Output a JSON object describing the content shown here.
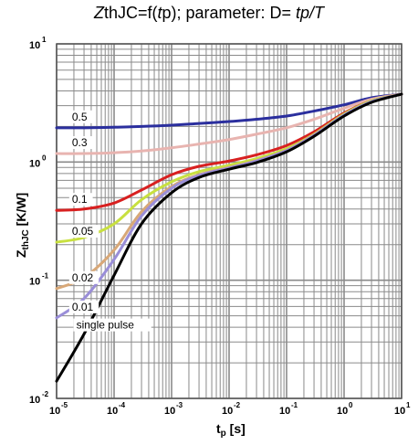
{
  "title": {
    "zth": "Z",
    "thjc": "thJC=f(",
    "tp_italic": "t",
    "tp_rest": "p); parameter: D= ",
    "d_formula": "tp/T"
  },
  "chart_data": {
    "type": "line",
    "title": "ZthJC=f(tp); parameter: D= tp/T",
    "xlabel": "tp [s]",
    "ylabel": "ZthJC [K/W]",
    "x_scale": "log",
    "y_scale": "log",
    "xlim": [
      1e-05,
      10
    ],
    "ylim": [
      0.01,
      10
    ],
    "grid": true,
    "x_ticks": [
      {
        "base": "10",
        "exp": "-5",
        "value": 1e-05
      },
      {
        "base": "10",
        "exp": "-4",
        "value": 0.0001
      },
      {
        "base": "10",
        "exp": "-3",
        "value": 0.001
      },
      {
        "base": "10",
        "exp": "-2",
        "value": 0.01
      },
      {
        "base": "10",
        "exp": "-1",
        "value": 0.1
      },
      {
        "base": "10",
        "exp": "0",
        "value": 1
      },
      {
        "base": "10",
        "exp": "1",
        "value": 10
      }
    ],
    "y_ticks": [
      {
        "base": "10",
        "exp": "-2",
        "value": 0.01
      },
      {
        "base": "10",
        "exp": "-1",
        "value": 0.1
      },
      {
        "base": "10",
        "exp": "0",
        "value": 1
      },
      {
        "base": "10",
        "exp": "1",
        "value": 10
      }
    ],
    "series": [
      {
        "name": "0.5",
        "color": "#2b2f9e",
        "x": [
          1e-05,
          3e-05,
          0.0001,
          0.0003,
          0.001,
          0.003,
          0.01,
          0.03,
          0.1,
          0.3,
          1,
          3,
          10
        ],
        "y": [
          1.95,
          1.95,
          1.97,
          2.0,
          2.05,
          2.12,
          2.2,
          2.3,
          2.45,
          2.7,
          3.05,
          3.5,
          3.75
        ]
      },
      {
        "name": "0.3",
        "color": "#e8b4b0",
        "x": [
          1e-05,
          3e-05,
          0.0001,
          0.0003,
          0.001,
          0.003,
          0.01,
          0.03,
          0.1,
          0.3,
          1,
          3,
          10
        ],
        "y": [
          1.18,
          1.18,
          1.2,
          1.24,
          1.32,
          1.42,
          1.55,
          1.72,
          1.95,
          2.3,
          2.85,
          3.4,
          3.75
        ]
      },
      {
        "name": "0.1",
        "color": "#d82020",
        "x": [
          1e-05,
          3e-05,
          0.0001,
          0.0003,
          0.001,
          0.003,
          0.01,
          0.03,
          0.1,
          0.3,
          1,
          3,
          10
        ],
        "y": [
          0.39,
          0.4,
          0.45,
          0.58,
          0.78,
          0.92,
          1.02,
          1.15,
          1.38,
          1.8,
          2.6,
          3.3,
          3.75
        ]
      },
      {
        "name": "0.05",
        "color": "#c8e040",
        "x": [
          1e-05,
          3e-05,
          0.0001,
          0.0003,
          0.001,
          0.003,
          0.01,
          0.03,
          0.1,
          0.3,
          1,
          3,
          10
        ],
        "y": [
          0.21,
          0.23,
          0.3,
          0.48,
          0.68,
          0.83,
          0.94,
          1.07,
          1.3,
          1.72,
          2.55,
          3.3,
          3.75
        ]
      },
      {
        "name": "0.02",
        "color": "#d8a878",
        "x": [
          1e-05,
          3e-05,
          0.0001,
          0.0003,
          0.001,
          0.003,
          0.01,
          0.03,
          0.1,
          0.3,
          1,
          3,
          10
        ],
        "y": [
          0.085,
          0.105,
          0.18,
          0.38,
          0.62,
          0.78,
          0.9,
          1.03,
          1.26,
          1.7,
          2.5,
          3.25,
          3.75
        ]
      },
      {
        "name": "0.01",
        "color": "#9a8ed8",
        "x": [
          1e-05,
          3e-05,
          0.0001,
          0.0003,
          0.001,
          0.003,
          0.01,
          0.03,
          0.1,
          0.3,
          1,
          3,
          10
        ],
        "y": [
          0.048,
          0.07,
          0.15,
          0.35,
          0.6,
          0.77,
          0.89,
          1.02,
          1.25,
          1.68,
          2.5,
          3.25,
          3.75
        ]
      },
      {
        "name": "single pulse",
        "color": "#000000",
        "x": [
          1e-05,
          3e-05,
          0.0001,
          0.0003,
          0.001,
          0.003,
          0.01,
          0.03,
          0.1,
          0.3,
          1,
          3,
          10
        ],
        "y": [
          0.014,
          0.035,
          0.11,
          0.3,
          0.55,
          0.74,
          0.87,
          0.99,
          1.22,
          1.65,
          2.45,
          3.2,
          3.75
        ]
      }
    ]
  }
}
